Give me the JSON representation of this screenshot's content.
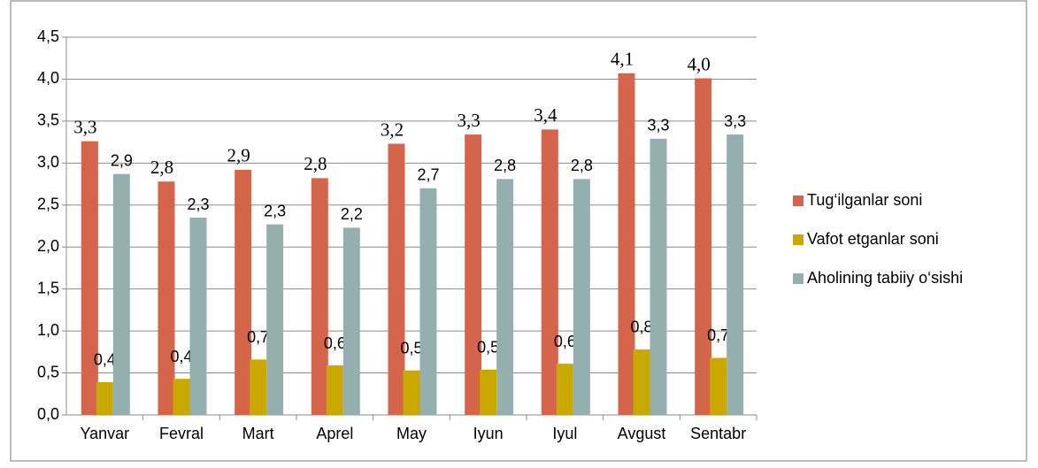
{
  "chart_data": {
    "type": "bar",
    "categories": [
      "Yanvar",
      "Fevral",
      "Mart",
      "Aprel",
      "May",
      "Iyun",
      "Iyul",
      "Avgust",
      "Sentabr"
    ],
    "series": [
      {
        "name": "Tug‘ilganlar soni",
        "color": "#d4644a",
        "label_color": "#c00000",
        "values": [
          3.26,
          2.78,
          2.92,
          2.82,
          3.23,
          3.34,
          3.4,
          4.07,
          4.01
        ],
        "value_labels": [
          "3,3",
          "2,8",
          "2,9",
          "2,8",
          "3,2",
          "3,3",
          "3,4",
          "4,1",
          "4,0"
        ]
      },
      {
        "name": "Vafot etganlar soni",
        "color": "#c9a800",
        "label_color": "#000000",
        "values": [
          0.39,
          0.43,
          0.66,
          0.59,
          0.53,
          0.54,
          0.61,
          0.78,
          0.68
        ],
        "value_labels": [
          "0,4",
          "0,4",
          "0,7",
          "0,6",
          "0,5",
          "0,5",
          "0,6",
          "0,8",
          "0,7"
        ]
      },
      {
        "name": "Aholining tabiiy o‘sishi",
        "color": "#93afae",
        "label_color": "#44546a",
        "values": [
          2.87,
          2.35,
          2.27,
          2.23,
          2.7,
          2.81,
          2.81,
          3.29,
          3.34
        ],
        "value_labels": [
          "2,9",
          "2,3",
          "2,3",
          "2,2",
          "2,7",
          "2,8",
          "2,8",
          "3,3",
          "3,3"
        ]
      }
    ],
    "ylim": [
      0,
      4.5
    ],
    "yticks": [
      {
        "value": 0,
        "label": "0,0"
      },
      {
        "value": 0.5,
        "label": "0,5"
      },
      {
        "value": 1,
        "label": "1,0"
      },
      {
        "value": 1.5,
        "label": "1,5"
      },
      {
        "value": 2,
        "label": "2,0"
      },
      {
        "value": 2.5,
        "label": "2,5"
      },
      {
        "value": 3,
        "label": "3,0"
      },
      {
        "value": 3.5,
        "label": "3,5"
      },
      {
        "value": 4,
        "label": "4,0"
      },
      {
        "value": 4.5,
        "label": "4,5"
      }
    ],
    "grid": true,
    "legend": "right"
  }
}
